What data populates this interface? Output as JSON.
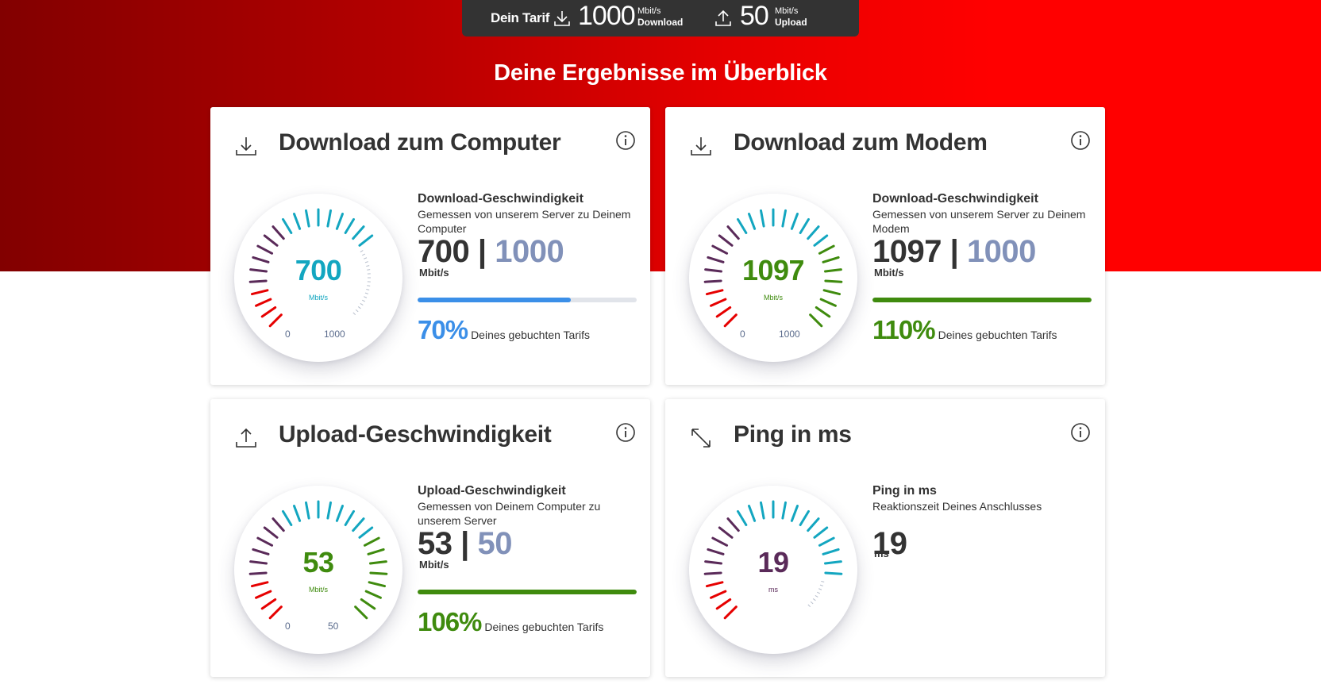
{
  "tariff": {
    "label": "Dein Tarif",
    "download_value": "1000",
    "download_unit": "Mbit/s",
    "download_caption": "Download",
    "upload_value": "50",
    "upload_unit": "Mbit/s",
    "upload_caption": "Upload"
  },
  "headline": "Deine Ergebnisse im Überblick",
  "colors": {
    "brand_red": "#e60000",
    "teal": "#13a6c0",
    "green": "#3f8b0e",
    "blue_bar": "#3b8fe8",
    "booked_value": "#8191b9",
    "ping_purple": "#5a2a59"
  },
  "cards": [
    {
      "icon": "download-icon",
      "title": "Download zum Computer",
      "gauge": {
        "value": "700",
        "unit": "Mbit/s",
        "min": "0",
        "max": "1000",
        "level": 0.7,
        "value_color": "#13a6c0"
      },
      "metric_title": "Download-Geschwindigkeit",
      "metric_sub": "Gemessen von unserem Server zu Deinem Computer",
      "measured": "700",
      "separator": "|",
      "booked": "1000",
      "unit": "Mbit/s",
      "progress": 0.7,
      "bar_color": "#3b8fe8",
      "percent": "70%",
      "percent_color": "#3b8fe8",
      "percent_label": "Deines gebuchten Tarifs"
    },
    {
      "icon": "download-icon",
      "title": "Download zum Modem",
      "gauge": {
        "value": "1097",
        "unit": "Mbit/s",
        "min": "0",
        "max": "1000",
        "level": 1.0,
        "value_color": "#3f8b0e"
      },
      "metric_title": "Download-Geschwindigkeit",
      "metric_sub": "Gemessen von unserem Server zu Deinem Modem",
      "measured": "1097",
      "separator": "|",
      "booked": "1000",
      "unit": "Mbit/s",
      "progress": 1.0,
      "bar_color": "#3f8b0e",
      "percent": "110%",
      "percent_color": "#3f8b0e",
      "percent_label": "Deines gebuchten Tarifs"
    },
    {
      "icon": "upload-icon",
      "title": "Upload-Geschwindigkeit",
      "gauge": {
        "value": "53",
        "unit": "Mbit/s",
        "min": "0",
        "max": "50",
        "level": 1.0,
        "value_color": "#3f8b0e"
      },
      "metric_title": "Upload-Geschwindigkeit",
      "metric_sub": "Gemessen von Deinem Computer zu unserem Server",
      "measured": "53",
      "separator": "|",
      "booked": "50",
      "unit": "Mbit/s",
      "progress": 1.0,
      "bar_color": "#3f8b0e",
      "percent": "106%",
      "percent_color": "#3f8b0e",
      "percent_label": "Deines gebuchten Tarifs"
    },
    {
      "icon": "ping-arrows-icon",
      "title": "Ping in ms",
      "gauge": {
        "value": "19",
        "unit": "ms",
        "min": "",
        "max": "",
        "level": 0.87,
        "value_color": "#5a2a59"
      },
      "metric_title": "Ping in ms",
      "metric_sub": "Reaktionszeit Deines Anschlusses",
      "measured": "19",
      "separator": "",
      "booked": "",
      "unit": "ms",
      "progress": null,
      "bar_color": "",
      "percent": "",
      "percent_color": "",
      "percent_label": ""
    }
  ]
}
